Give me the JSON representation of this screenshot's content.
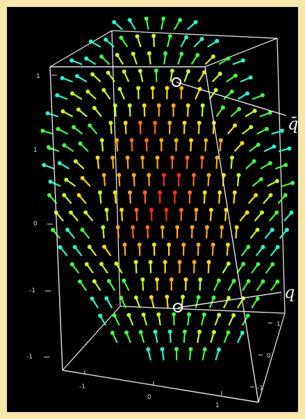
{
  "figure": {
    "background_color": "#000000",
    "border_color": "#f7e7a9",
    "box_color": "#e6e6e6",
    "q_bar_label": "q̄",
    "q_label": "q",
    "vertical_ticks": [
      "1",
      "1",
      "0",
      "-1",
      "-1"
    ],
    "depth_ticks": [
      "1",
      "0",
      "-1"
    ],
    "bottom_ticks": [
      "-1",
      "0",
      "1"
    ],
    "marker_color": "#ffffff"
  },
  "chart_data": {
    "type": "other",
    "vector_field": {
      "palette": [
        "#ff2c10",
        "#ff6a10",
        "#ffaa10",
        "#ffe000",
        "#c8ff20",
        "#40ff40",
        "#20ffd0",
        "#4070ff",
        "#8a2cff"
      ],
      "rows": 20,
      "columns": 16
    }
  }
}
